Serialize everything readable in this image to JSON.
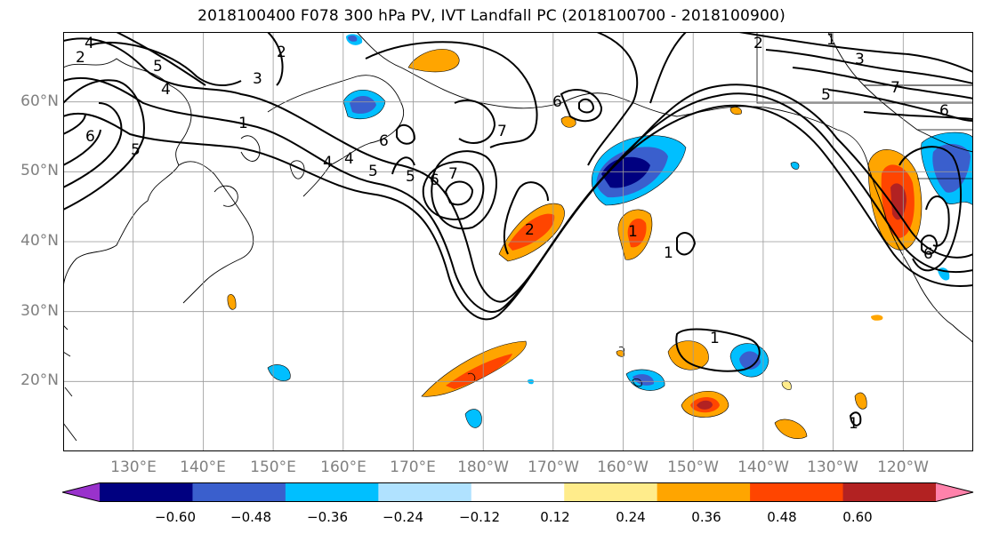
{
  "title": "2018100400 F078 300 hPa PV, IVT Landfall PC (2018100700 - 2018100900)",
  "lat_labels": [
    "60°N",
    "50°N",
    "40°N",
    "30°N",
    "20°N"
  ],
  "lon_labels": [
    "130°E",
    "140°E",
    "150°E",
    "160°E",
    "170°E",
    "180°W",
    "170°W",
    "160°W",
    "150°W",
    "140°W",
    "130°W",
    "120°W"
  ],
  "colorbar": {
    "tick_labels": [
      "−0.60",
      "−0.48",
      "−0.36",
      "−0.24",
      "−0.12",
      "0.12",
      "0.24",
      "0.36",
      "0.48",
      "0.60"
    ],
    "colors": [
      "#9932cc",
      "#000080",
      "#3a5fcd",
      "#00bfff",
      "#b0e2ff",
      "#ffffff",
      "#ffec8b",
      "#ffa500",
      "#ff4500",
      "#b22222",
      "#ff82ab"
    ]
  },
  "contour_labels": [
    "4",
    "2",
    "5",
    "3",
    "4",
    "1",
    "2",
    "6",
    "5",
    "4",
    "6",
    "5",
    "6",
    "7",
    "5",
    "4",
    "6",
    "7",
    "2",
    "1",
    "1",
    "1",
    "2",
    "1",
    "3",
    "5",
    "7",
    "6",
    "6",
    "1"
  ],
  "map_extent": {
    "lon_min": 120,
    "lon_max": 250,
    "lat_min": 10,
    "lat_max": 70
  }
}
